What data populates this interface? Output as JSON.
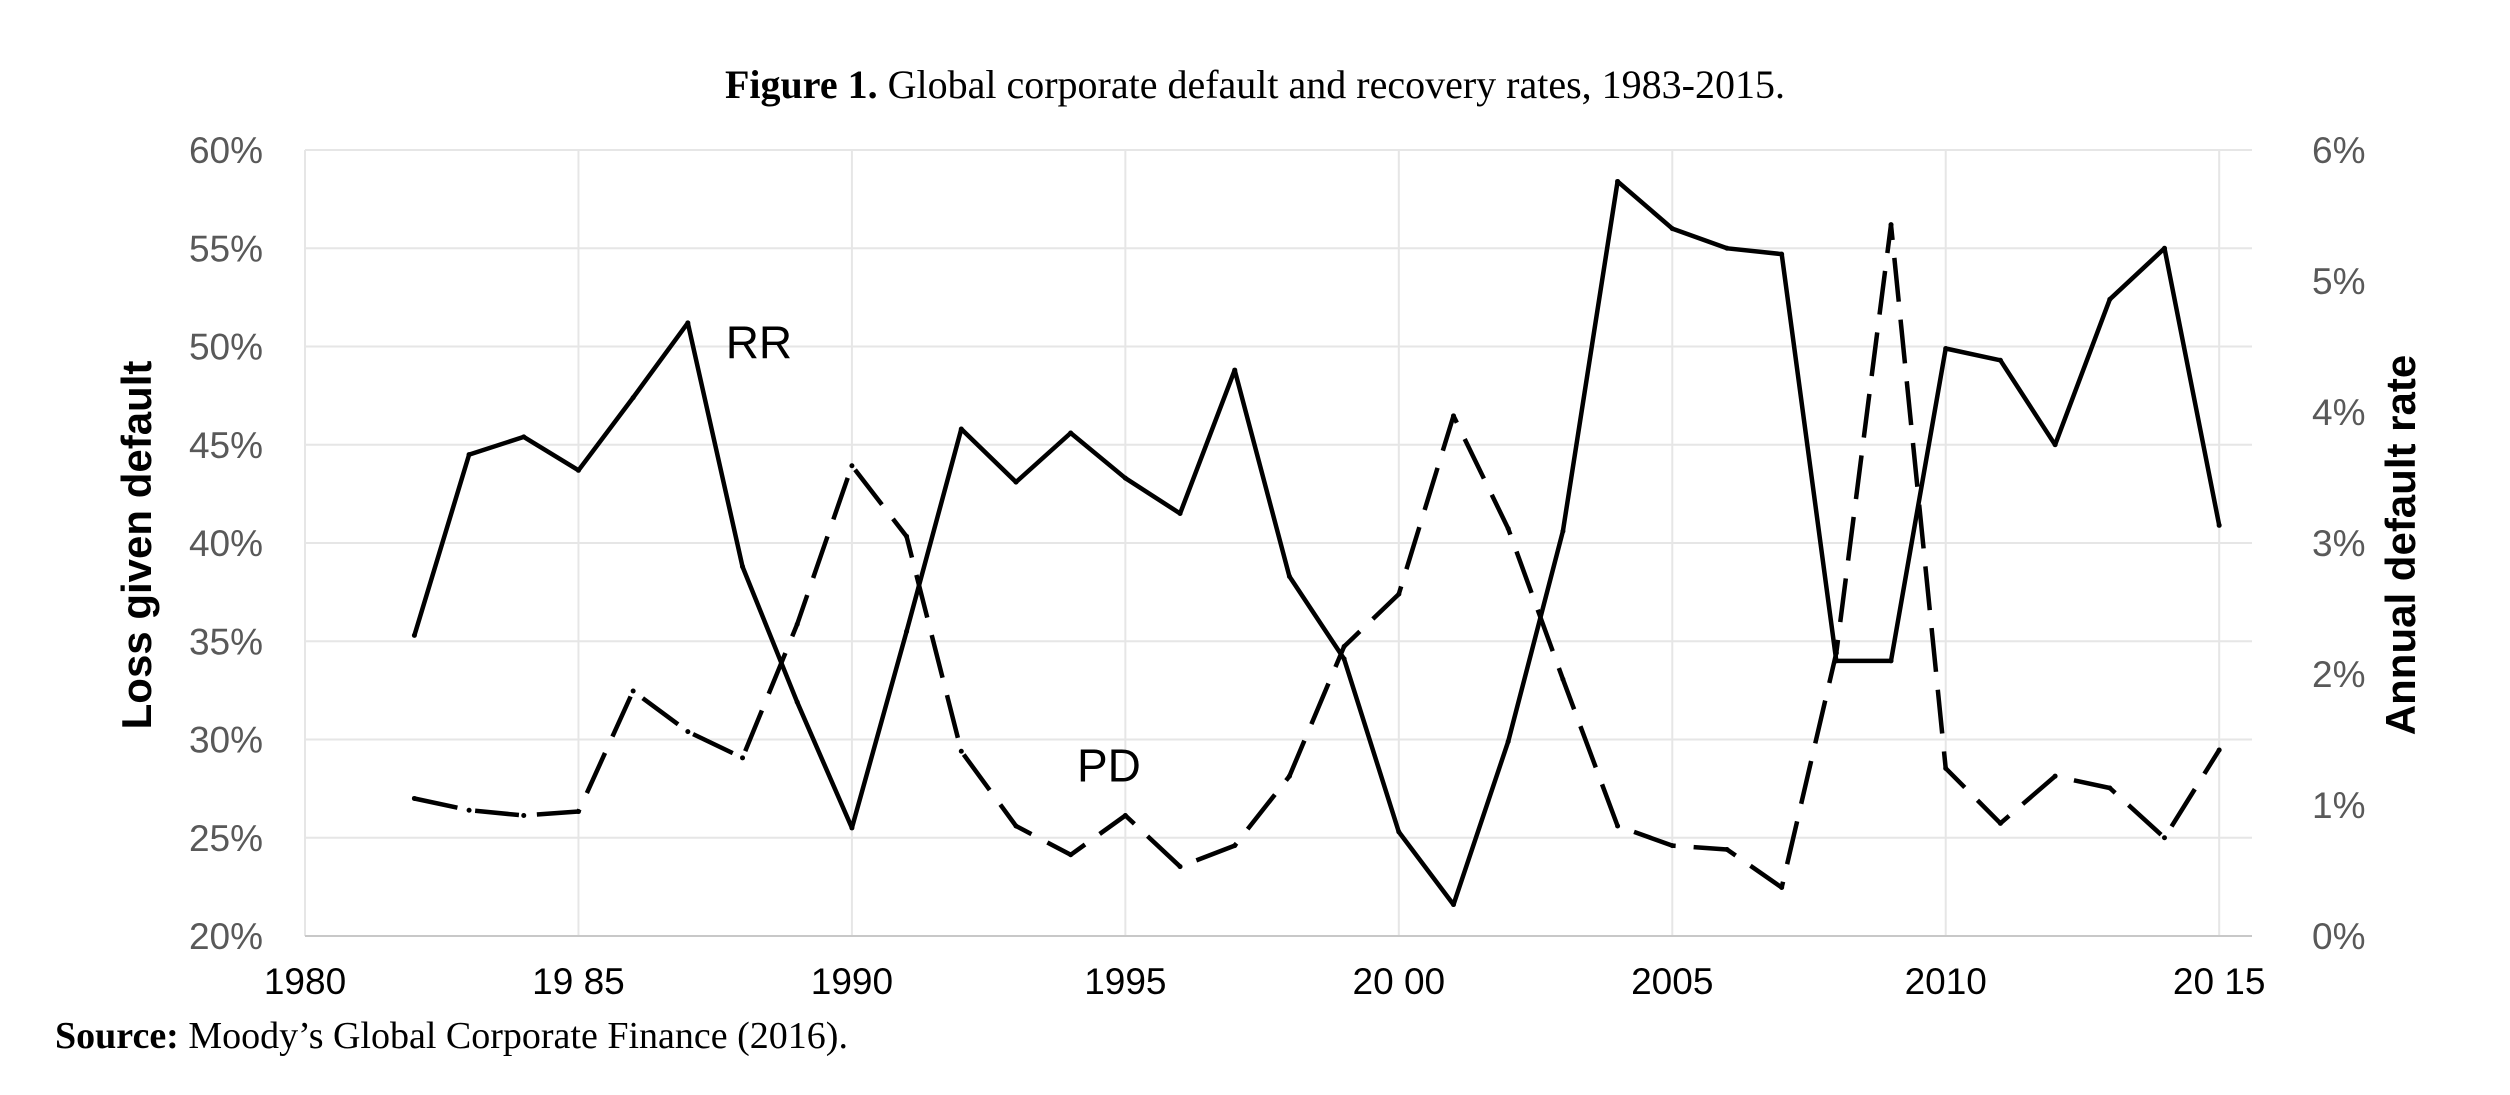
{
  "figure": {
    "title_bold": "Figure 1.",
    "title_rest": " Global corporate default and recovery rates, 1983-2015.",
    "source_bold": "Source:",
    "source_rest": " Moody’s Global Corporate Finance (2016)."
  },
  "chart_data": {
    "type": "line",
    "title": "Figure 1. Global corporate default and recovery rates, 1983-2015.",
    "x": [
      1982,
      1983,
      1984,
      1985,
      1986,
      1987,
      1988,
      1989,
      1990,
      1991,
      1992,
      1993,
      1994,
      1995,
      1996,
      1997,
      1998,
      1999,
      2000,
      2001,
      2002,
      2003,
      2004,
      2005,
      2006,
      2007,
      2008,
      2009,
      2010,
      2011,
      2012,
      2013,
      2014,
      2015
    ],
    "x_ticks": [
      "1980",
      "19 85",
      "1990",
      "1995",
      "20 00",
      "2005",
      "2010",
      "20 15"
    ],
    "x_tick_values": [
      1980,
      1985,
      1990,
      1995,
      2000,
      2005,
      2010,
      2015
    ],
    "xlim": [
      1980,
      2015.6
    ],
    "ylabel_left": "Loss given default",
    "ylabel_right": "Annual default rate",
    "ylim_left": [
      20,
      60
    ],
    "ylim_right": [
      0,
      6
    ],
    "left_ticks": [
      "20%",
      "25%",
      "30%",
      "35%",
      "40%",
      "45%",
      "50%",
      "55%",
      "60%"
    ],
    "left_tick_values": [
      20,
      25,
      30,
      35,
      40,
      45,
      50,
      55,
      60
    ],
    "right_ticks": [
      "0%",
      "1%",
      "2%",
      "3%",
      "4%",
      "5%",
      "6%"
    ],
    "right_tick_values": [
      0,
      1,
      2,
      3,
      4,
      5,
      6
    ],
    "grid": true,
    "series": [
      {
        "name": "RR",
        "axis": "left",
        "style": "solid",
        "color": "#000000",
        "values": [
          35.3,
          44.5,
          45.4,
          43.7,
          47.4,
          51.2,
          38.8,
          31.9,
          25.5,
          35.5,
          45.8,
          43.1,
          45.6,
          43.3,
          41.5,
          48.8,
          38.3,
          34.1,
          25.3,
          21.6,
          29.9,
          40.6,
          58.4,
          56.0,
          55.0,
          54.7,
          34.0,
          34.0,
          49.9,
          49.3,
          45.0,
          52.4,
          55.0,
          40.9
        ]
      },
      {
        "name": "PD",
        "axis": "right",
        "style": "dashed",
        "color": "#000000",
        "values": [
          1.05,
          0.96,
          0.92,
          0.95,
          1.87,
          1.56,
          1.36,
          2.38,
          3.59,
          3.05,
          1.41,
          0.84,
          0.62,
          0.92,
          0.53,
          0.69,
          1.22,
          2.21,
          2.61,
          3.97,
          3.11,
          1.96,
          0.84,
          0.69,
          0.66,
          0.37,
          2.16,
          5.43,
          1.28,
          0.86,
          1.22,
          1.13,
          0.75,
          1.42
        ]
      }
    ],
    "annotations": [
      {
        "text": "RR",
        "x": 1988.3,
        "y": 50.2,
        "axis": "left"
      },
      {
        "text": "PD",
        "x": 1994.7,
        "y": 1.3,
        "axis": "right"
      }
    ]
  }
}
